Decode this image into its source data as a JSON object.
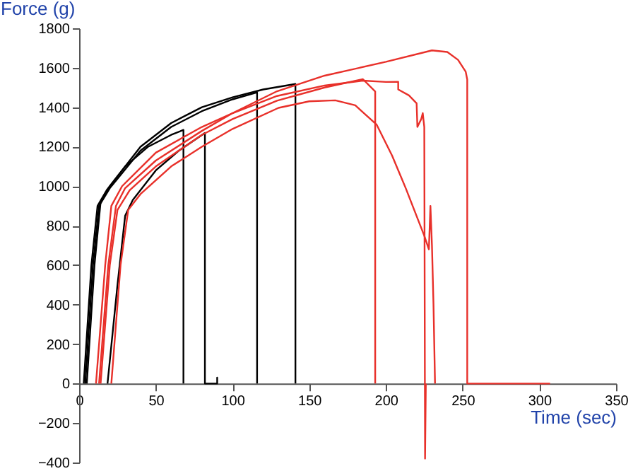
{
  "chart_data": {
    "type": "line",
    "xlabel": "Time (sec)",
    "ylabel": "Force (g)",
    "xlim": [
      0,
      350
    ],
    "ylim": [
      -400,
      1800
    ],
    "xticks": [
      0,
      50,
      100,
      150,
      200,
      250,
      300,
      350
    ],
    "yticks": [
      -400,
      -200,
      0,
      200,
      400,
      600,
      800,
      1000,
      1200,
      1400,
      1600,
      1800
    ],
    "grid": false,
    "legend": false,
    "series": [
      {
        "color": "#000000",
        "x": [
          3,
          8,
          12,
          18,
          30,
          45,
          60,
          68,
          68
        ],
        "values": [
          0,
          600,
          900,
          980,
          1100,
          1200,
          1260,
          1285,
          0
        ]
      },
      {
        "color": "#000000",
        "x": [
          18.5,
          25,
          30,
          35,
          50,
          65,
          82,
          82,
          90,
          90,
          90
        ],
        "values": [
          0,
          500,
          850,
          930,
          1080,
          1180,
          1270,
          0,
          0,
          30,
          0
        ]
      },
      {
        "color": "#000000",
        "x": [
          4,
          9,
          13,
          20,
          40,
          60,
          80,
          100,
          116,
          116
        ],
        "values": [
          0,
          600,
          900,
          990,
          1180,
          1300,
          1380,
          1440,
          1475,
          0
        ]
      },
      {
        "color": "#000000",
        "x": [
          5,
          10,
          14,
          20,
          40,
          60,
          80,
          100,
          120,
          141,
          141
        ],
        "values": [
          0,
          600,
          920,
          1000,
          1200,
          1320,
          1400,
          1450,
          1490,
          1518,
          0
        ]
      },
      {
        "color": "#e8302a",
        "x": [
          11,
          17,
          21,
          28,
          50,
          80,
          100,
          129,
          160,
          200,
          230,
          240,
          247,
          252,
          253,
          253,
          307
        ],
        "values": [
          0,
          600,
          900,
          1000,
          1170,
          1300,
          1370,
          1481,
          1560,
          1630,
          1688,
          1680,
          1640,
          1580,
          1540,
          0,
          0
        ]
      },
      {
        "color": "#e8302a",
        "x": [
          14,
          20,
          25,
          33,
          50,
          80,
          100,
          129,
          160,
          185,
          193,
          193
        ],
        "values": [
          0,
          600,
          880,
          980,
          1100,
          1260,
          1340,
          1433,
          1500,
          1542,
          1480,
          0
        ]
      },
      {
        "color": "#e8302a",
        "x": [
          13,
          19,
          24,
          30,
          50,
          80,
          100,
          129,
          160,
          185,
          200,
          208,
          208,
          215,
          220,
          220.5,
          223,
          224,
          225,
          225.5,
          226
        ],
        "values": [
          0,
          600,
          900,
          990,
          1130,
          1280,
          1370,
          1457,
          1510,
          1535,
          1528,
          1529,
          1490,
          1460,
          1420,
          1300,
          1340,
          1370,
          1300,
          -380,
          0
        ]
      },
      {
        "color": "#e8302a",
        "x": [
          21,
          27,
          32,
          40,
          60,
          80,
          100,
          130,
          150,
          167,
          180,
          194,
          204,
          213,
          225,
          228,
          229,
          230,
          231,
          232
        ],
        "values": [
          0,
          600,
          880,
          960,
          1100,
          1200,
          1290,
          1397,
          1430,
          1435,
          1410,
          1311,
          1155,
          988,
          749,
          680,
          900,
          700,
          400,
          0
        ]
      }
    ]
  }
}
